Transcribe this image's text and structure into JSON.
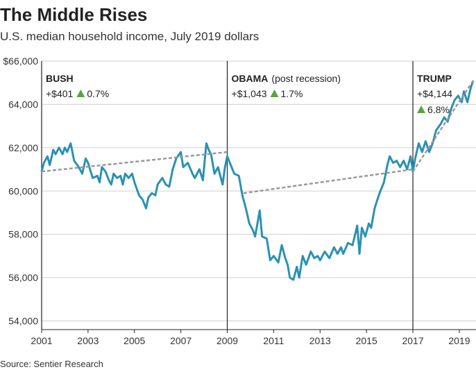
{
  "chart_data": {
    "type": "line",
    "title": "The Middle Rises",
    "subtitle": "U.S. median household income, July 2019 dollars",
    "source": "Source: Sentier Research",
    "xlim": [
      2001,
      2019.6
    ],
    "xticks": [
      2001,
      2003,
      2005,
      2007,
      2009,
      2011,
      2013,
      2015,
      2017,
      2019
    ],
    "ylim": [
      53600,
      66000
    ],
    "yticks": [
      {
        "value": 54000,
        "label": "54,000"
      },
      {
        "value": 56000,
        "label": "56,000"
      },
      {
        "value": 58000,
        "label": "58,000"
      },
      {
        "value": 60000,
        "label": "60,000"
      },
      {
        "value": 62000,
        "label": "62,000"
      },
      {
        "value": 64000,
        "label": "64,000"
      },
      {
        "value": 66000,
        "label": "$66,000"
      }
    ],
    "grid": true,
    "series": [
      {
        "color": "#2a91b3",
        "x": [
          2001.0,
          2001.1,
          2001.25,
          2001.35,
          2001.5,
          2001.6,
          2001.75,
          2001.9,
          2002.0,
          2002.1,
          2002.25,
          2002.4,
          2002.6,
          2002.75,
          2002.9,
          2003.0,
          2003.2,
          2003.4,
          2003.5,
          2003.6,
          2003.75,
          2003.9,
          2004.0,
          2004.1,
          2004.25,
          2004.4,
          2004.5,
          2004.6,
          2004.75,
          2004.9,
          2005.0,
          2005.2,
          2005.35,
          2005.5,
          2005.6,
          2005.75,
          2005.9,
          2006.0,
          2006.2,
          2006.35,
          2006.5,
          2006.65,
          2006.8,
          2007.0,
          2007.1,
          2007.3,
          2007.5,
          2007.6,
          2007.8,
          2007.95,
          2008.1,
          2008.2,
          2008.3,
          2008.45,
          2008.6,
          2008.8,
          2008.9,
          2009.0,
          2009.15,
          2009.3,
          2009.5,
          2009.65,
          2009.8,
          2009.95,
          2010.1,
          2010.2,
          2010.3,
          2010.4,
          2010.5,
          2010.7,
          2010.85,
          2011.0,
          2011.2,
          2011.35,
          2011.5,
          2011.6,
          2011.7,
          2011.85,
          2012.0,
          2012.1,
          2012.25,
          2012.4,
          2012.6,
          2012.75,
          2012.9,
          2013.0,
          2013.2,
          2013.4,
          2013.6,
          2013.75,
          2013.9,
          2014.0,
          2014.2,
          2014.4,
          2014.6,
          2014.7,
          2014.8,
          2014.95,
          2015.1,
          2015.2,
          2015.35,
          2015.5,
          2015.6,
          2015.75,
          2015.9,
          2016.0,
          2016.15,
          2016.3,
          2016.45,
          2016.6,
          2016.75,
          2016.9,
          2017.0,
          2017.1,
          2017.25,
          2017.4,
          2017.55,
          2017.7,
          2017.85,
          2018.0,
          2018.2,
          2018.35,
          2018.5,
          2018.65,
          2018.8,
          2018.95,
          2019.1,
          2019.2,
          2019.35,
          2019.5,
          2019.6
        ],
        "values": [
          60900,
          61300,
          61600,
          61200,
          61900,
          61700,
          62000,
          61700,
          62000,
          61800,
          62200,
          61400,
          61100,
          60800,
          61500,
          61300,
          60600,
          60700,
          60400,
          61100,
          60900,
          60500,
          60300,
          60800,
          60600,
          60700,
          60300,
          60800,
          60600,
          60800,
          60400,
          59800,
          59600,
          59200,
          59700,
          59900,
          59800,
          60300,
          60600,
          60300,
          60200,
          61000,
          61500,
          61800,
          61100,
          61300,
          60800,
          60600,
          61000,
          60500,
          62200,
          61900,
          61700,
          60800,
          61100,
          60300,
          61100,
          61600,
          61200,
          60800,
          60700,
          59800,
          59200,
          58500,
          58200,
          57900,
          58500,
          59100,
          57900,
          57800,
          56800,
          57000,
          56700,
          57500,
          56900,
          56600,
          56000,
          55900,
          56500,
          56000,
          57000,
          56600,
          57200,
          56900,
          57000,
          56800,
          57200,
          56900,
          57400,
          57100,
          57400,
          57100,
          57600,
          57500,
          58400,
          57100,
          58300,
          57900,
          58500,
          58300,
          59200,
          59700,
          60000,
          60400,
          61200,
          61600,
          61300,
          61400,
          61100,
          61400,
          61000,
          61600,
          60900,
          61500,
          62200,
          61800,
          62300,
          61800,
          62200,
          62800,
          63100,
          63400,
          63200,
          63800,
          64200,
          64400,
          64100,
          64600,
          64100,
          64800,
          65100
        ]
      }
    ],
    "trends": [
      {
        "color": "#999999",
        "x": [
          2001,
          2009
        ],
        "values": [
          60900,
          61800
        ]
      },
      {
        "color": "#999999",
        "x": [
          2009.7,
          2017
        ],
        "values": [
          59900,
          61000
        ]
      },
      {
        "color": "#999999",
        "x": [
          2017,
          2019.6
        ],
        "values": [
          60900,
          65100
        ]
      }
    ],
    "annotations": [
      {
        "x": 2001,
        "name": "BUSH",
        "change": "+$401",
        "pct": "0.7%"
      },
      {
        "x": 2009,
        "name": "OBAMA",
        "note": "(post recession)",
        "change": "+$1,043",
        "pct": "1.7%"
      },
      {
        "x": 2017,
        "name": "TRUMP",
        "change": "+$4,144",
        "pct": "6.8%"
      }
    ]
  }
}
